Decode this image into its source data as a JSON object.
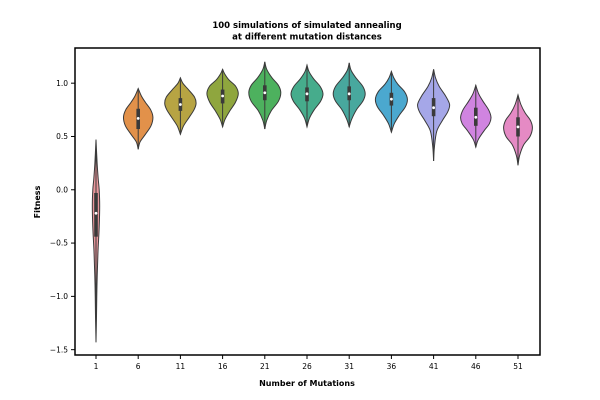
{
  "chart_data": {
    "type": "violin",
    "title_lines": [
      "100 simulations of simulated annealing",
      "at different mutation distances"
    ],
    "xlabel": "Number of Mutations",
    "ylabel": "Fitness",
    "ylim": [
      -1.55,
      1.33
    ],
    "yticks": [
      1.0,
      0.5,
      0.0,
      -0.5,
      -1.0,
      -1.5
    ],
    "ytick_labels": [
      "1.0",
      "0.5",
      "0.0",
      "−0.5",
      "−1.0",
      "−1.5"
    ],
    "grid": false,
    "categories": [
      "1",
      "6",
      "11",
      "16",
      "21",
      "26",
      "31",
      "36",
      "41",
      "46",
      "51"
    ],
    "violins": [
      {
        "category": "1",
        "color": "#e8969b",
        "min": -1.43,
        "max": 0.47,
        "q1": -0.44,
        "median": -0.22,
        "q3": -0.03,
        "profile": [
          [
            -1.43,
            0.0
          ],
          [
            -1.2,
            0.03
          ],
          [
            -0.9,
            0.06
          ],
          [
            -0.6,
            0.12
          ],
          [
            -0.35,
            0.2
          ],
          [
            -0.15,
            0.23
          ],
          [
            0.0,
            0.2
          ],
          [
            0.1,
            0.14
          ],
          [
            0.25,
            0.07
          ],
          [
            0.47,
            0.0
          ]
        ]
      },
      {
        "category": "6",
        "color": "#e2914a",
        "min": 0.38,
        "max": 0.95,
        "q1": 0.57,
        "median": 0.67,
        "q3": 0.76,
        "profile": [
          [
            0.38,
            0.0
          ],
          [
            0.45,
            0.12
          ],
          [
            0.52,
            0.45
          ],
          [
            0.6,
            0.8
          ],
          [
            0.68,
            0.92
          ],
          [
            0.75,
            0.78
          ],
          [
            0.82,
            0.45
          ],
          [
            0.88,
            0.2
          ],
          [
            0.95,
            0.0
          ]
        ]
      },
      {
        "category": "11",
        "color": "#b7a443",
        "min": 0.52,
        "max": 1.05,
        "q1": 0.74,
        "median": 0.8,
        "q3": 0.86,
        "profile": [
          [
            0.52,
            0.0
          ],
          [
            0.6,
            0.2
          ],
          [
            0.68,
            0.55
          ],
          [
            0.75,
            0.85
          ],
          [
            0.81,
            0.98
          ],
          [
            0.87,
            0.88
          ],
          [
            0.94,
            0.5
          ],
          [
            1.0,
            0.15
          ],
          [
            1.05,
            0.0
          ]
        ]
      },
      {
        "category": "16",
        "color": "#8fa63e",
        "min": 0.59,
        "max": 1.13,
        "q1": 0.81,
        "median": 0.88,
        "q3": 0.94,
        "profile": [
          [
            0.59,
            0.0
          ],
          [
            0.66,
            0.15
          ],
          [
            0.74,
            0.45
          ],
          [
            0.82,
            0.8
          ],
          [
            0.9,
            0.98
          ],
          [
            0.97,
            0.82
          ],
          [
            1.03,
            0.4
          ],
          [
            1.09,
            0.12
          ],
          [
            1.13,
            0.0
          ]
        ]
      },
      {
        "category": "21",
        "color": "#4db15e",
        "min": 0.57,
        "max": 1.2,
        "q1": 0.84,
        "median": 0.91,
        "q3": 0.98,
        "profile": [
          [
            0.57,
            0.0
          ],
          [
            0.65,
            0.12
          ],
          [
            0.74,
            0.4
          ],
          [
            0.83,
            0.85
          ],
          [
            0.91,
            1.0
          ],
          [
            0.98,
            0.85
          ],
          [
            1.05,
            0.45
          ],
          [
            1.13,
            0.12
          ],
          [
            1.2,
            0.0
          ]
        ]
      },
      {
        "category": "26",
        "color": "#46ac8c",
        "min": 0.59,
        "max": 1.17,
        "q1": 0.83,
        "median": 0.9,
        "q3": 0.96,
        "profile": [
          [
            0.59,
            0.0
          ],
          [
            0.67,
            0.15
          ],
          [
            0.75,
            0.45
          ],
          [
            0.83,
            0.85
          ],
          [
            0.9,
            1.0
          ],
          [
            0.97,
            0.82
          ],
          [
            1.04,
            0.42
          ],
          [
            1.11,
            0.12
          ],
          [
            1.17,
            0.0
          ]
        ]
      },
      {
        "category": "31",
        "color": "#48a89e",
        "min": 0.59,
        "max": 1.19,
        "q1": 0.84,
        "median": 0.9,
        "q3": 0.97,
        "profile": [
          [
            0.59,
            0.0
          ],
          [
            0.66,
            0.15
          ],
          [
            0.75,
            0.45
          ],
          [
            0.83,
            0.85
          ],
          [
            0.9,
            1.0
          ],
          [
            0.97,
            0.85
          ],
          [
            1.05,
            0.42
          ],
          [
            1.12,
            0.12
          ],
          [
            1.19,
            0.0
          ]
        ]
      },
      {
        "category": "36",
        "color": "#4ba8cf",
        "min": 0.54,
        "max": 1.11,
        "q1": 0.79,
        "median": 0.85,
        "q3": 0.91,
        "profile": [
          [
            0.54,
            0.0
          ],
          [
            0.62,
            0.18
          ],
          [
            0.7,
            0.5
          ],
          [
            0.78,
            0.88
          ],
          [
            0.85,
            1.0
          ],
          [
            0.92,
            0.82
          ],
          [
            0.99,
            0.4
          ],
          [
            1.05,
            0.15
          ],
          [
            1.11,
            0.0
          ]
        ]
      },
      {
        "category": "41",
        "color": "#a5a7e8",
        "min": 0.27,
        "max": 1.13,
        "q1": 0.69,
        "median": 0.77,
        "q3": 0.86,
        "profile": [
          [
            0.27,
            0.0
          ],
          [
            0.4,
            0.05
          ],
          [
            0.55,
            0.2
          ],
          [
            0.65,
            0.55
          ],
          [
            0.73,
            0.88
          ],
          [
            0.8,
            1.0
          ],
          [
            0.88,
            0.75
          ],
          [
            0.97,
            0.35
          ],
          [
            1.05,
            0.12
          ],
          [
            1.13,
            0.0
          ]
        ]
      },
      {
        "category": "46",
        "color": "#d084e0",
        "min": 0.4,
        "max": 0.98,
        "q1": 0.6,
        "median": 0.68,
        "q3": 0.77,
        "profile": [
          [
            0.4,
            0.0
          ],
          [
            0.47,
            0.15
          ],
          [
            0.55,
            0.5
          ],
          [
            0.62,
            0.85
          ],
          [
            0.68,
            0.95
          ],
          [
            0.75,
            0.8
          ],
          [
            0.83,
            0.45
          ],
          [
            0.9,
            0.18
          ],
          [
            0.98,
            0.0
          ]
        ]
      },
      {
        "category": "51",
        "color": "#e58ac4",
        "min": 0.23,
        "max": 0.89,
        "q1": 0.5,
        "median": 0.59,
        "q3": 0.68,
        "profile": [
          [
            0.23,
            0.0
          ],
          [
            0.32,
            0.1
          ],
          [
            0.42,
            0.35
          ],
          [
            0.5,
            0.75
          ],
          [
            0.58,
            0.9
          ],
          [
            0.65,
            0.78
          ],
          [
            0.72,
            0.45
          ],
          [
            0.8,
            0.18
          ],
          [
            0.89,
            0.0
          ]
        ]
      }
    ]
  }
}
